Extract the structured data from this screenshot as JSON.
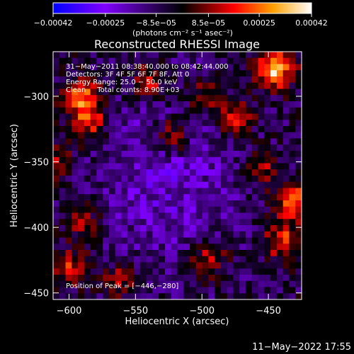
{
  "chart_data": {
    "type": "heatmap",
    "title": "Reconstructed RHESSI Image",
    "xlabel": "Heliocentric X (arcsec)",
    "ylabel": "Heliocentric Y (arcsec)",
    "xlim": [
      -612,
      -425
    ],
    "ylim": [
      -455,
      -266
    ],
    "x_ticks": [
      -600,
      -550,
      -500,
      -450
    ],
    "x_tick_labels": [
      "−600",
      "−550",
      "−500",
      "−450"
    ],
    "y_ticks": [
      -300,
      -350,
      -400,
      -450
    ],
    "y_tick_labels": [
      "−300",
      "−350",
      "−400",
      "−450"
    ],
    "colorbar": {
      "ticks": [
        -0.00042,
        -0.00025,
        -8.5e-05,
        8.5e-05,
        0.00025,
        0.00042
      ],
      "tick_labels": [
        "−0.00042",
        "−0.00025",
        "−8.5e−05",
        "8.5e−05",
        "0.00025",
        "0.00042"
      ],
      "unit_label": "(photons cm⁻² s⁻¹ asec⁻²)",
      "range": [
        -0.00042,
        0.00042
      ],
      "colors": [
        "#0000ff",
        "#8000ff",
        "#000000",
        "#ff0000",
        "#ffa000",
        "#ffffff"
      ]
    },
    "annotations": [
      "31−May−2011 08:38:40.000 to 08:42:44.000",
      "Detectors: 3F 4F 5F 6F 7F 8F, Att 0",
      "Energy Range: 25.0 − 50.0 keV",
      "Clean     Total counts: 8.90E+03"
    ],
    "peak_label": "Position of Peak = [−446,−280]",
    "peak": [
      -446,
      -280
    ],
    "grid_cells": [
      40,
      40
    ],
    "grid": false,
    "legend": "colorbar-top"
  },
  "footer": {
    "date": "11−May−2022 17:55"
  }
}
